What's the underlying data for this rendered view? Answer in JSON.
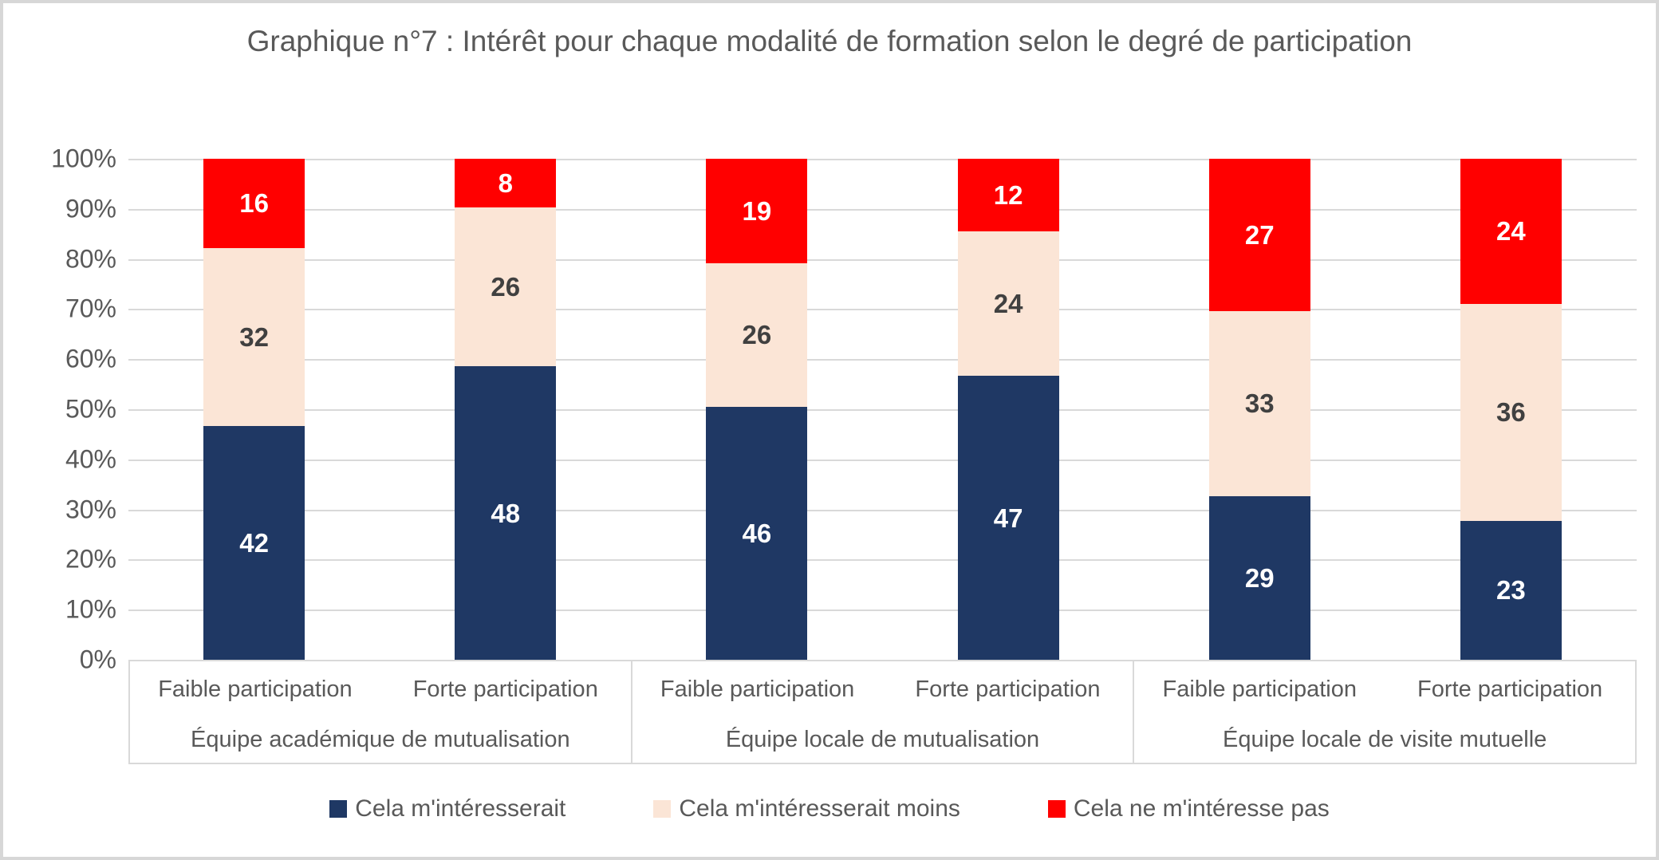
{
  "chart_data": {
    "type": "bar",
    "subtype": "stacked-100-percent",
    "title": "Graphique n°7 : Intérêt pour chaque modalité de formation selon le degré de participation",
    "y_axis": {
      "ticks_top_to_bottom": [
        "100%",
        "90%",
        "80%",
        "70%",
        "60%",
        "50%",
        "40%",
        "30%",
        "20%",
        "10%",
        "0%"
      ],
      "min": 0,
      "max": 100,
      "grid": true
    },
    "group_labels": [
      "Équipe académique de mutualisation",
      "Équipe locale de mutualisation",
      "Équipe locale de visite mutuelle"
    ],
    "bar_labels": [
      "Faible participation",
      "Forte participation",
      "Faible participation",
      "Forte participation",
      "Faible participation",
      "Forte participation"
    ],
    "series": [
      {
        "name": "Cela m'intéresserait",
        "color": "#1F3864",
        "label_color": "#FFFFFF",
        "values": [
          42,
          48,
          46,
          47,
          29,
          23
        ]
      },
      {
        "name": "Cela m'intéresserait moins",
        "color": "#FBE5D6",
        "label_color": "#404040",
        "values": [
          32,
          26,
          26,
          24,
          33,
          36
        ]
      },
      {
        "name": "Cela ne m'intéresse pas",
        "color": "#FF0000",
        "label_color": "#FFFFFF",
        "values": [
          16,
          8,
          19,
          12,
          27,
          24
        ]
      }
    ],
    "legend_position": "bottom",
    "colors": {
      "text_gray": "#595959",
      "gridline": "#D9D9D9",
      "frame_border": "#D7D7D7"
    }
  }
}
